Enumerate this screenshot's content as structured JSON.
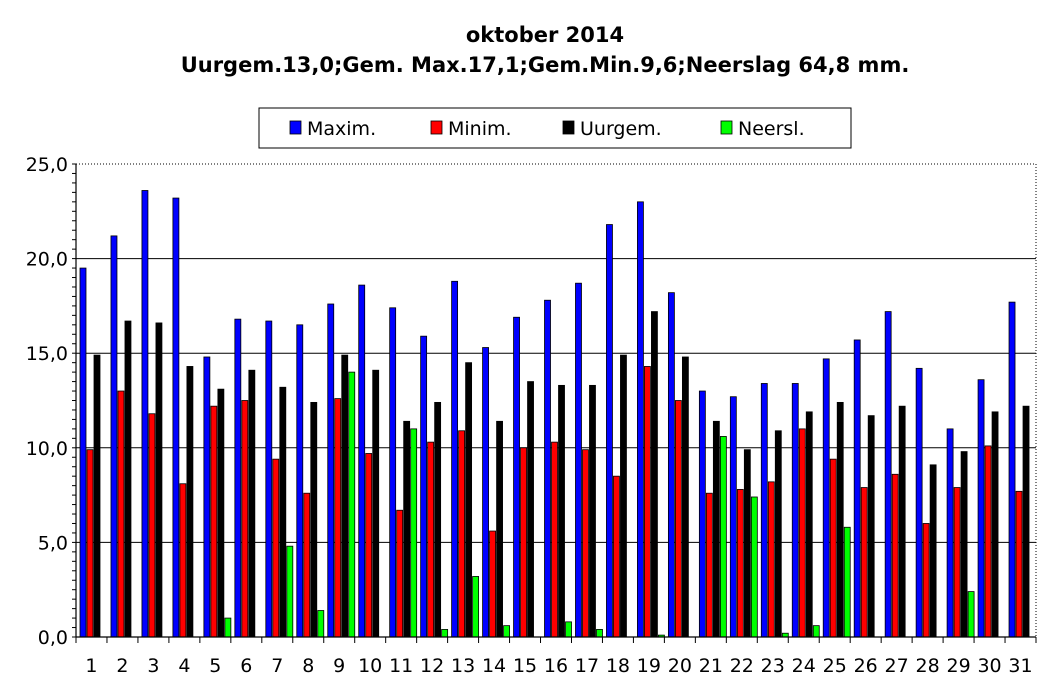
{
  "chart_data": {
    "type": "bar",
    "title": "oktober 2014",
    "subtitle": "Uurgem.13,0;Gem. Max.17,1;Gem.Min.9,6;Neerslag 64,8 mm.",
    "xlabel": "",
    "ylabel": "",
    "ylim": [
      0,
      25
    ],
    "yticks": [
      "0,0",
      "5,0",
      "10,0",
      "15,0",
      "20,0",
      "25,0"
    ],
    "ytick_values": [
      0,
      5,
      10,
      15,
      20,
      25
    ],
    "grid": true,
    "legend_position": "top",
    "categories": [
      "1",
      "2",
      "3",
      "4",
      "5",
      "6",
      "7",
      "8",
      "9",
      "10",
      "11",
      "12",
      "13",
      "14",
      "15",
      "16",
      "17",
      "18",
      "19",
      "20",
      "21",
      "22",
      "23",
      "24",
      "25",
      "26",
      "27",
      "28",
      "29",
      "30",
      "31"
    ],
    "series": [
      {
        "name": "Maxim.",
        "color": "#0000ff",
        "values": [
          19.5,
          21.2,
          23.6,
          23.2,
          14.8,
          16.8,
          16.7,
          16.5,
          17.6,
          18.6,
          17.4,
          15.9,
          18.8,
          15.3,
          16.9,
          17.8,
          18.7,
          21.8,
          23.0,
          18.2,
          13.0,
          12.7,
          13.4,
          13.4,
          14.7,
          15.7,
          17.2,
          14.2,
          11.0,
          13.6,
          17.7
        ]
      },
      {
        "name": "Minim.",
        "color": "#ff0000",
        "values": [
          9.9,
          13.0,
          11.8,
          8.1,
          12.2,
          12.5,
          9.4,
          7.6,
          12.6,
          9.7,
          6.7,
          10.3,
          10.9,
          5.6,
          10.0,
          10.3,
          9.9,
          8.5,
          14.3,
          12.5,
          7.6,
          7.8,
          8.2,
          11.0,
          9.4,
          7.9,
          8.6,
          6.0,
          7.9,
          10.1,
          7.7
        ]
      },
      {
        "name": "Uurgem.",
        "color": "#000000",
        "values": [
          14.9,
          16.7,
          16.6,
          14.3,
          13.1,
          14.1,
          13.2,
          12.4,
          14.9,
          14.1,
          11.4,
          12.4,
          14.5,
          11.4,
          13.5,
          13.3,
          13.3,
          14.9,
          17.2,
          14.8,
          11.4,
          9.9,
          10.9,
          11.9,
          12.4,
          11.7,
          12.2,
          9.1,
          9.8,
          11.9,
          12.2
        ]
      },
      {
        "name": "Neersl.",
        "color": "#00ff00",
        "values": [
          0,
          0,
          0,
          0,
          1.0,
          0,
          4.8,
          1.4,
          14.0,
          0,
          11.0,
          0.4,
          3.2,
          0.6,
          0,
          0.8,
          0.4,
          0,
          0.1,
          0,
          10.6,
          7.4,
          0.2,
          0.6,
          5.8,
          0,
          0,
          0,
          2.4,
          0,
          0
        ]
      }
    ]
  }
}
